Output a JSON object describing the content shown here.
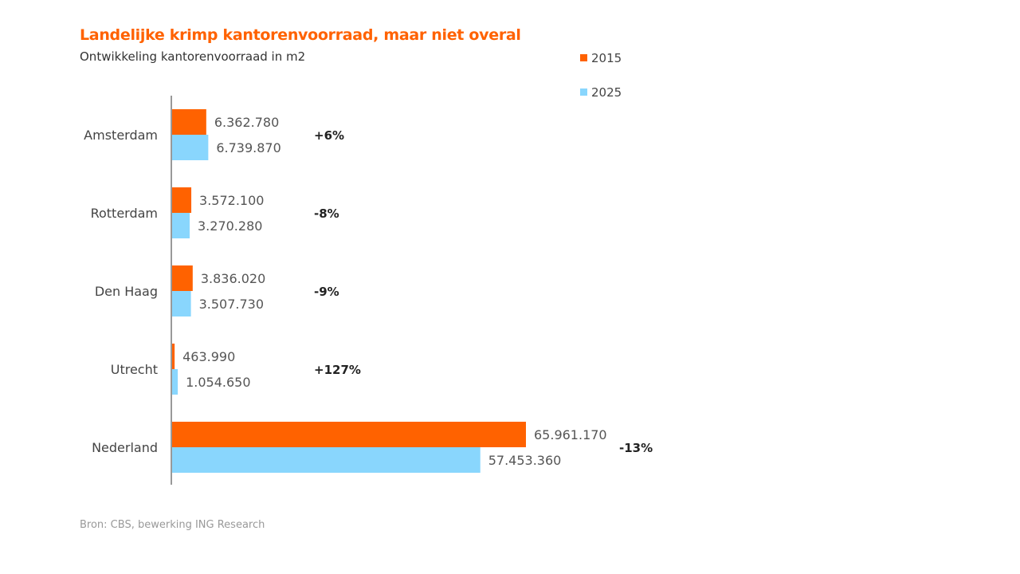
{
  "title": "Landelijke krimp kantorenvoorraad, maar niet overal",
  "subtitle": "Ontwikkeling kantorenvoorraad in m2",
  "source": "Bron: CBS, bewerking ING Research",
  "chart_data": {
    "type": "bar",
    "orientation": "horizontal",
    "title": "Landelijke krimp kantorenvoorraad, maar niet overal",
    "subtitle": "Ontwikkeling kantorenvoorraad in m2",
    "categories": [
      "Amsterdam",
      "Rotterdam",
      "Den Haag",
      "Utrecht",
      "Nederland"
    ],
    "series": [
      {
        "name": "2015",
        "color": "#FF6200",
        "values": [
          6362780,
          3572100,
          3836020,
          463990,
          65961170
        ],
        "labels": [
          "6.362.780",
          "3.572.100",
          "3.836.020",
          "463.990",
          "65.961.170"
        ]
      },
      {
        "name": "2025",
        "color": "#89D6FD",
        "values": [
          6739870,
          3270280,
          3507730,
          1054650,
          57453360
        ],
        "labels": [
          "6.739.870",
          "3.270.280",
          "3.507.730",
          "1.054.650",
          "57.453.360"
        ]
      }
    ],
    "changes": [
      "+6%",
      "-8%",
      "-9%",
      "+127%",
      "-13%"
    ],
    "legend": [
      "2015",
      "2025"
    ],
    "legend_position": "top-right",
    "grid": false,
    "xlim": [
      0,
      65961170
    ]
  }
}
